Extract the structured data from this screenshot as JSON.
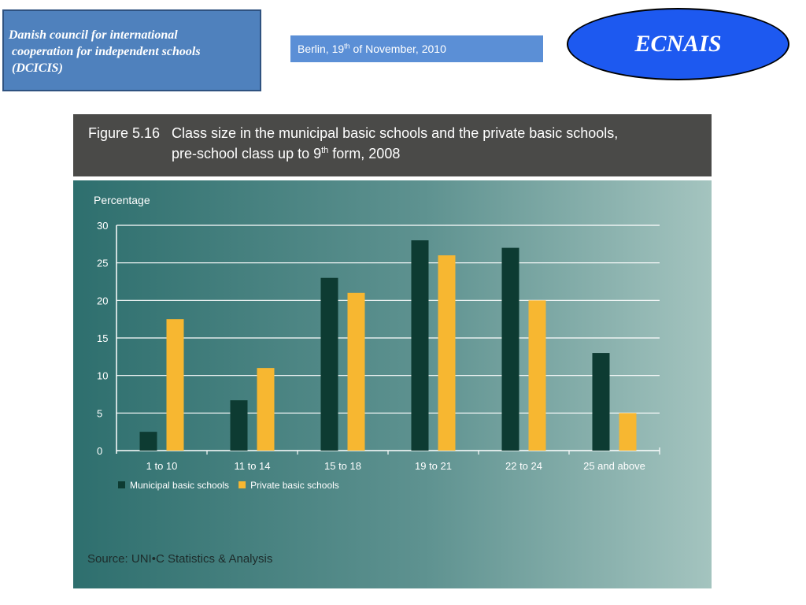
{
  "header": {
    "org_line1": "Danish council for international",
    "org_line2": " cooperation for independent schools",
    "org_line3": " (DCICIS)",
    "date_prefix": "Berlin, 19",
    "date_sup": "th",
    "date_suffix": " of November, 2010",
    "logo_text": "ECNAIS"
  },
  "figure": {
    "number": "Figure 5.16",
    "title_line1": "Class size in the municipal basic schools and the private basic schools,",
    "title_line2_prefix": "pre-school class up to 9",
    "title_line2_sup": "th",
    "title_line2_suffix": " form, 2008",
    "source": "Source: UNI•C Statistics & Analysis"
  },
  "chart_data": {
    "type": "bar",
    "ylabel": "Percentage",
    "xlabel": "",
    "ylim": [
      0,
      30
    ],
    "yticks": [
      0,
      5,
      10,
      15,
      20,
      25,
      30
    ],
    "categories": [
      "1 to 10",
      "11 to 14",
      "15 to 18",
      "19 to 21",
      "22 to 24",
      "25 and above"
    ],
    "series": [
      {
        "name": "Municipal basic schools",
        "color": "#0d3b32",
        "values": [
          2.5,
          6.7,
          23,
          28,
          27,
          13
        ]
      },
      {
        "name": "Private basic schools",
        "color": "#f7b731",
        "values": [
          17.5,
          11,
          21,
          26,
          20,
          5
        ]
      }
    ],
    "grid": true,
    "legend": "bottom-left"
  }
}
